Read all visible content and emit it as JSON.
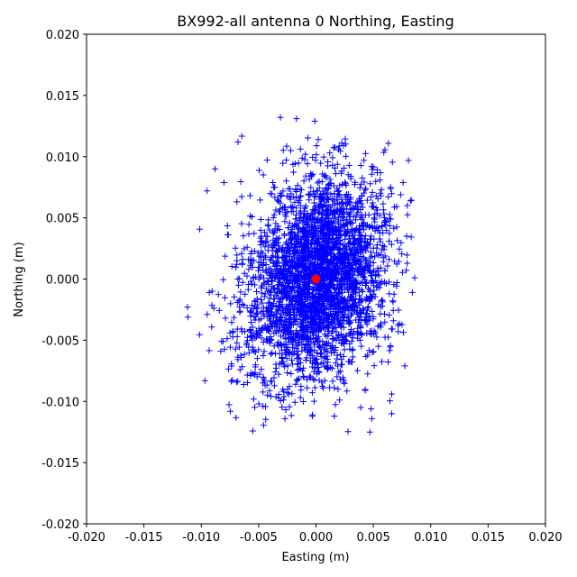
{
  "chart_data": {
    "type": "scatter",
    "title": "BX992-all antenna 0 Northing, Easting",
    "xlabel": "Easting (m)",
    "ylabel": "Northing (m)",
    "xlim": [
      -0.02,
      0.02
    ],
    "ylim": [
      -0.02,
      0.02
    ],
    "x_ticks": [
      "-0.020",
      "-0.015",
      "-0.010",
      "-0.005",
      "0.000",
      "0.005",
      "0.010",
      "0.015",
      "0.020"
    ],
    "y_ticks": [
      "-0.020",
      "-0.015",
      "-0.010",
      "-0.005",
      "0.000",
      "0.005",
      "0.010",
      "0.015",
      "0.020"
    ],
    "grid": false,
    "series": [
      {
        "marker": "+",
        "color": "#0000ff",
        "distribution": {
          "center_x": 0.0,
          "center_y": 0.0,
          "x_range": [
            -0.0112,
            0.0087
          ],
          "y_range": [
            -0.0125,
            0.0132
          ]
        },
        "points": [
          [
            -0.0112,
            -0.0023
          ],
          [
            -0.0031,
            0.0132
          ],
          [
            -0.0017,
            0.0131
          ],
          [
            -0.0001,
            0.0129
          ],
          [
            0.0047,
            -0.0125
          ],
          [
            -0.0003,
            -0.0111
          ],
          [
            0.0016,
            -0.0112
          ],
          [
            0.0066,
            -0.011
          ],
          [
            -0.0088,
            0.009
          ],
          [
            -0.0068,
            0.0112
          ],
          [
            -0.0095,
            0.0072
          ],
          [
            -0.0093,
            -0.0011
          ],
          [
            -0.0083,
            -0.0059
          ],
          [
            0.0086,
            0.0001
          ],
          [
            0.0084,
            -0.0011
          ],
          [
            0.0065,
            0.0075
          ],
          [
            0.0057,
            0.0073
          ],
          [
            0.0079,
            0.0035
          ],
          [
            0.0066,
            -0.0094
          ],
          [
            0.0039,
            -0.0105
          ],
          [
            0.0002,
            0.0114
          ],
          [
            -0.0022,
            0.0105
          ],
          [
            0.0012,
            0.0103
          ],
          [
            -0.0075,
            -0.0044
          ]
        ]
      },
      {
        "marker": "o",
        "color": "#ff0000",
        "points": [
          [
            0.0,
            0.0
          ]
        ]
      }
    ]
  }
}
